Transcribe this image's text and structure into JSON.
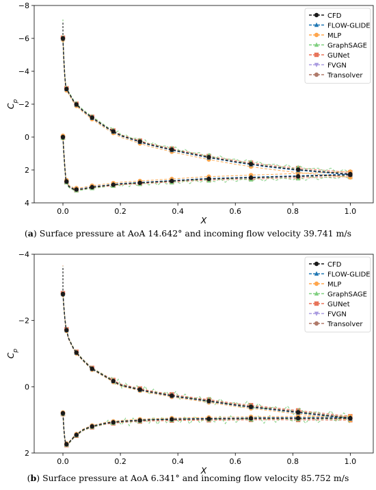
{
  "figure": {
    "captions": [
      {
        "letter": "a",
        "text": "Surface pressure at AoA 14.642° and incoming flow velocity 39.741 m/s"
      },
      {
        "letter": "b",
        "text": "Surface pressure at AoA 6.341° and incoming flow velocity 85.752 m/s"
      }
    ]
  },
  "colors": {
    "CFD": "#1a1a1a",
    "FLOW-GLIDE": "#1f77b4",
    "MLP": "#ffa64d",
    "GraphSAGE": "#7fcf7f",
    "GUNet": "#e8745a",
    "FVGN": "#a99be0",
    "Transolver": "#b07a6a"
  },
  "chart_data": [
    {
      "type": "line",
      "xlabel": "X",
      "ylabel": "C_p",
      "xlim": [
        -0.1,
        1.08
      ],
      "ylim": [
        4,
        -8
      ],
      "y_inverted": true,
      "xticks": [
        0.0,
        0.2,
        0.4,
        0.6,
        0.8,
        1.0
      ],
      "yticks": [
        -8,
        -6,
        -4,
        -2,
        0,
        2,
        4
      ],
      "legend": [
        "CFD",
        "FLOW-GLIDE",
        "MLP",
        "GraphSAGE",
        "GUNet",
        "FVGN",
        "Transolver"
      ],
      "legend_position": "top-right",
      "grid": false,
      "series_shape": {
        "upper": {
          "x": [
            0.0,
            0.005,
            0.01,
            0.02,
            0.04,
            0.07,
            0.1,
            0.15,
            0.2,
            0.3,
            0.4,
            0.5,
            0.6,
            0.7,
            0.8,
            0.9,
            1.0
          ],
          "y": [
            -6.0,
            -4.0,
            -3.0,
            -2.7,
            -2.1,
            -1.6,
            -1.2,
            -0.6,
            -0.1,
            0.45,
            0.85,
            1.2,
            1.5,
            1.75,
            1.95,
            2.1,
            2.25
          ]
        },
        "lower": {
          "x": [
            0.0,
            0.005,
            0.01,
            0.02,
            0.04,
            0.07,
            0.1,
            0.15,
            0.2,
            0.3,
            0.4,
            0.5,
            0.6,
            0.7,
            0.8,
            0.9,
            1.0
          ],
          "y": [
            0.0,
            1.5,
            2.6,
            3.0,
            3.2,
            3.15,
            3.05,
            2.95,
            2.85,
            2.75,
            2.65,
            2.55,
            2.5,
            2.45,
            2.4,
            2.35,
            2.3
          ]
        },
        "leading_edge_peak": -7.0
      },
      "offsets": {
        "CFD": 0,
        "FLOW-GLIDE": 0.05,
        "MLP": 0.2,
        "GraphSAGE": -0.15,
        "GUNet": -0.1,
        "FVGN": 0.05,
        "Transolver": 0.0
      }
    },
    {
      "type": "line",
      "xlabel": "X",
      "ylabel": "C_p",
      "xlim": [
        -0.1,
        1.08
      ],
      "ylim": [
        2,
        -4
      ],
      "y_inverted": true,
      "xticks": [
        0.0,
        0.2,
        0.4,
        0.6,
        0.8,
        1.0
      ],
      "yticks": [
        -4,
        -2,
        0,
        2
      ],
      "legend": [
        "CFD",
        "FLOW-GLIDE",
        "MLP",
        "GraphSAGE",
        "GUNet",
        "FVGN",
        "Transolver"
      ],
      "legend_position": "top-right",
      "grid": false,
      "series_shape": {
        "upper": {
          "x": [
            0.0,
            0.005,
            0.01,
            0.02,
            0.04,
            0.07,
            0.1,
            0.15,
            0.2,
            0.3,
            0.4,
            0.5,
            0.6,
            0.7,
            0.8,
            0.9,
            1.0
          ],
          "y": [
            -2.8,
            -2.2,
            -1.8,
            -1.45,
            -1.1,
            -0.8,
            -0.55,
            -0.3,
            -0.05,
            0.15,
            0.3,
            0.42,
            0.55,
            0.65,
            0.75,
            0.85,
            0.95
          ]
        },
        "lower": {
          "x": [
            0.0,
            0.005,
            0.01,
            0.02,
            0.04,
            0.07,
            0.1,
            0.15,
            0.2,
            0.3,
            0.4,
            0.5,
            0.6,
            0.7,
            0.8,
            0.9,
            1.0
          ],
          "y": [
            0.8,
            1.5,
            1.75,
            1.7,
            1.5,
            1.3,
            1.2,
            1.1,
            1.05,
            1.0,
            0.98,
            0.97,
            0.96,
            0.95,
            0.95,
            0.95,
            0.95
          ]
        },
        "leading_edge_peak": -3.6
      },
      "offsets": {
        "CFD": 0,
        "FLOW-GLIDE": 0.02,
        "MLP": 0.06,
        "GraphSAGE": -0.04,
        "GUNet": -0.06,
        "FVGN": 0.02,
        "Transolver": -0.03
      }
    }
  ]
}
